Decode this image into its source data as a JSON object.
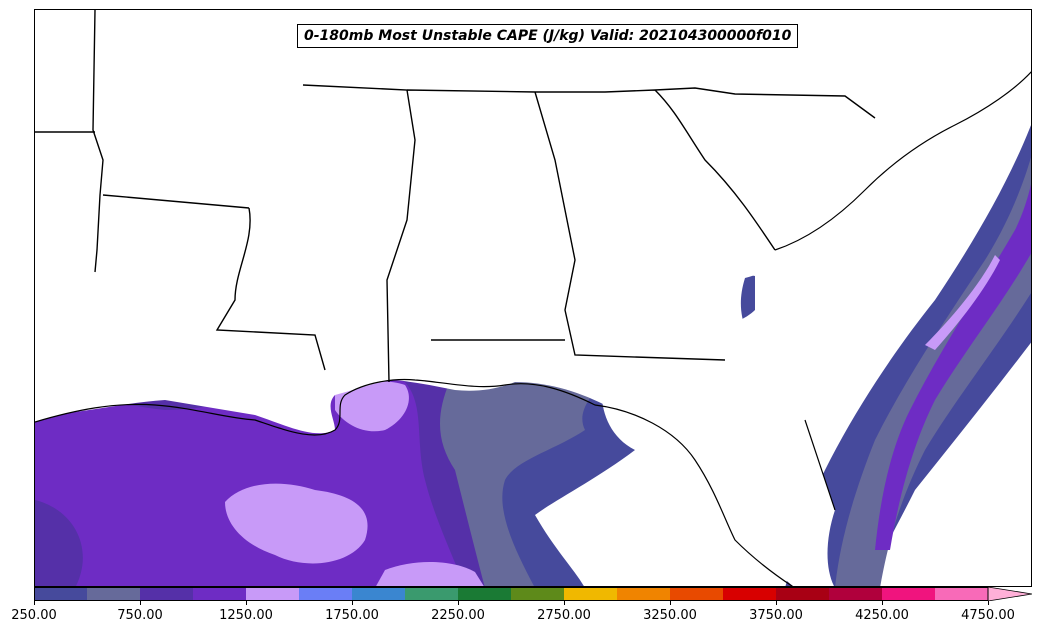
{
  "title": "0-180mb Most Unstable CAPE (J/kg) Valid: 202104300000f010",
  "colorbar": {
    "levels": [
      250,
      500,
      750,
      1000,
      1250,
      1500,
      1750,
      2000,
      2250,
      2500,
      2750,
      3000,
      3250,
      3500,
      3750,
      4000,
      4250,
      4500,
      4750
    ],
    "colors": [
      "#464a9c",
      "#666a9a",
      "#5530a8",
      "#6e2cc4",
      "#c89af8",
      "#6a7ef6",
      "#3a86d0",
      "#3a9a6e",
      "#1a7a34",
      "#5e8a1a",
      "#f0b800",
      "#f08400",
      "#e84a00",
      "#d80000",
      "#a80014",
      "#b0003c",
      "#f0147e",
      "#f86ab8",
      "#ffb0d8"
    ],
    "tick_labels": [
      "250.00",
      "750.00",
      "1250.00",
      "1750.00",
      "2250.00",
      "2750.00",
      "3250.00",
      "3750.00",
      "4250.00",
      "4750.00"
    ]
  }
}
